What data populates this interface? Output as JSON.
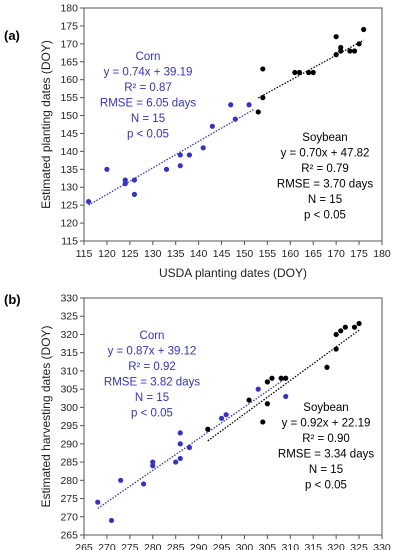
{
  "chart_data": [
    {
      "type": "scatter",
      "panel_label": "(a)",
      "xlabel": "USDA planting dates (DOY)",
      "ylabel": "Estimated planting dates (DOY)",
      "xlim": [
        115,
        180
      ],
      "ylim": [
        115,
        180
      ],
      "xticks": [
        115,
        120,
        125,
        130,
        135,
        140,
        145,
        150,
        155,
        160,
        165,
        170,
        175,
        180
      ],
      "yticks": [
        115,
        120,
        125,
        130,
        135,
        140,
        145,
        150,
        155,
        160,
        165,
        170,
        175,
        180
      ],
      "grid": false,
      "series": [
        {
          "name": "Corn",
          "color": "#3333cc",
          "points": [
            [
              116,
              126
            ],
            [
              120,
              135
            ],
            [
              124,
              131
            ],
            [
              124,
              132
            ],
            [
              126,
              128
            ],
            [
              126,
              132
            ],
            [
              133,
              135
            ],
            [
              136,
              136
            ],
            [
              136,
              139
            ],
            [
              138,
              139
            ],
            [
              141,
              141
            ],
            [
              143,
              147
            ],
            [
              147,
              153
            ],
            [
              148,
              149
            ],
            [
              151,
              153
            ]
          ],
          "fit_line": {
            "slope": 0.74,
            "intercept": 39.19,
            "x_range": [
              116,
              152
            ]
          },
          "annotation": [
            "Corn",
            "y = 0.74x + 39.19",
            "R² = 0.87",
            "RMSE = 6.05 days",
            "N = 15",
            "p < 0.05"
          ]
        },
        {
          "name": "Soybean",
          "color": "#000000",
          "points": [
            [
              153,
              151
            ],
            [
              154,
              155
            ],
            [
              154,
              163
            ],
            [
              161,
              162
            ],
            [
              162,
              162
            ],
            [
              164,
              162
            ],
            [
              165,
              162
            ],
            [
              170,
              167
            ],
            [
              170,
              172
            ],
            [
              171,
              168
            ],
            [
              171,
              169
            ],
            [
              173,
              168
            ],
            [
              174,
              168
            ],
            [
              175,
              170
            ],
            [
              176,
              174
            ]
          ],
          "fit_line": {
            "slope": 0.7,
            "intercept": 47.82,
            "x_range": [
              153,
              176
            ]
          },
          "annotation": [
            "Soybean",
            "y = 0.70x + 47.82",
            "R² = 0.79",
            "RMSE = 3.70 days",
            "N = 15",
            "p < 0.05"
          ]
        }
      ]
    },
    {
      "type": "scatter",
      "panel_label": "(b)",
      "xlabel": "USDA harvesting dates (DOY)",
      "ylabel": "Estimated harvesting dates (DOY)",
      "xlim": [
        265,
        330
      ],
      "ylim": [
        265,
        330
      ],
      "xticks": [
        265,
        270,
        275,
        280,
        285,
        290,
        295,
        300,
        305,
        310,
        315,
        320,
        325,
        330
      ],
      "yticks": [
        265,
        270,
        275,
        280,
        285,
        290,
        295,
        300,
        305,
        310,
        315,
        320,
        325,
        330
      ],
      "grid": false,
      "series": [
        {
          "name": "Corn",
          "color": "#3333cc",
          "points": [
            [
              268,
              274
            ],
            [
              271,
              269
            ],
            [
              273,
              280
            ],
            [
              278,
              279
            ],
            [
              280,
              284
            ],
            [
              280,
              285
            ],
            [
              285,
              285
            ],
            [
              286,
              286
            ],
            [
              286,
              290
            ],
            [
              286,
              293
            ],
            [
              288,
              289
            ],
            [
              295,
              297
            ],
            [
              296,
              298
            ],
            [
              303,
              305
            ],
            [
              309,
              303
            ]
          ],
          "fit_line": {
            "slope": 0.87,
            "intercept": 39.12,
            "x_range": [
              268,
              309
            ]
          },
          "annotation": [
            "Corn",
            "y = 0.87x + 39.12",
            "R² = 0.92",
            "RMSE = 3.82 days",
            "N = 15",
            "p < 0.05"
          ]
        },
        {
          "name": "Soybean",
          "color": "#000000",
          "points": [
            [
              292,
              294
            ],
            [
              301,
              302
            ],
            [
              304,
              296
            ],
            [
              305,
              301
            ],
            [
              305,
              307
            ],
            [
              306,
              308
            ],
            [
              308,
              308
            ],
            [
              309,
              308
            ],
            [
              318,
              311
            ],
            [
              320,
              316
            ],
            [
              320,
              320
            ],
            [
              321,
              321
            ],
            [
              322,
              322
            ],
            [
              324,
              322
            ],
            [
              325,
              323
            ]
          ],
          "fit_line": {
            "slope": 0.92,
            "intercept": 22.19,
            "x_range": [
              292,
              325
            ]
          },
          "annotation": [
            "Soybean",
            "y = 0.92x + 22.19",
            "R² = 0.90",
            "RMSE = 3.34 days",
            "N = 15",
            "p < 0.05"
          ]
        }
      ]
    }
  ]
}
